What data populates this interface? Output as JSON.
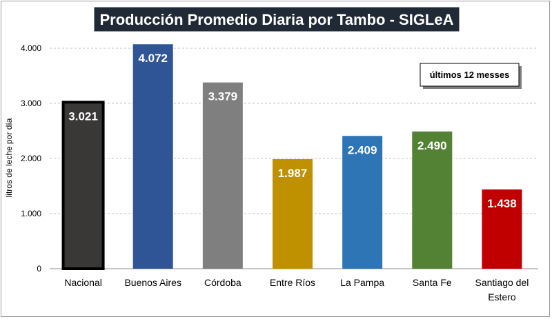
{
  "chart_data": {
    "type": "bar",
    "title": "Producción Promedio Diaria por Tambo - SIGLeA",
    "ylabel": "litros de leche por día",
    "xlabel": "",
    "ylim": [
      0,
      4000
    ],
    "yticks": [
      0,
      1000,
      2000,
      3000,
      4000
    ],
    "ytick_labels": [
      "0",
      "1.000",
      "2.000",
      "3.000",
      "4.000"
    ],
    "grid": true,
    "annotation": "últimos 12 messes",
    "categories": [
      [
        "Nacional"
      ],
      [
        "Buenos Aires"
      ],
      [
        "Córdoba"
      ],
      [
        "Entre Ríos"
      ],
      [
        "La Pampa"
      ],
      [
        "Santa Fe"
      ],
      [
        "Santiago del",
        "Estero"
      ]
    ],
    "values": [
      3021,
      4072,
      3379,
      1987,
      2409,
      2490,
      1438
    ],
    "value_labels": [
      "3.021",
      "4.072",
      "3.379",
      "1.987",
      "2.409",
      "2.490",
      "1.438"
    ],
    "colors": [
      "#3a3737",
      "#2f5597",
      "#7f7f7f",
      "#bf9000",
      "#2e75b6",
      "#548235",
      "#c00000"
    ],
    "outline_first": "#000000",
    "title_bg": "#1f2a36",
    "grid_color": "#bfbfbf"
  }
}
